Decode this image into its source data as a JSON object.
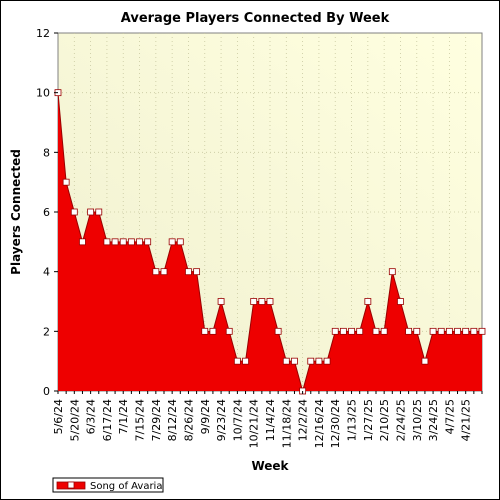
{
  "chart_data": {
    "type": "area",
    "title": "Average Players Connected By Week",
    "xlabel": "Week",
    "ylabel": "Players Connected",
    "ylim": [
      0,
      12
    ],
    "yticks": [
      "0",
      "2",
      "4",
      "6",
      "8",
      "10",
      "12"
    ],
    "grid": true,
    "legend_position": "bottom-left",
    "colors": {
      "fill": "#ee0000",
      "line": "#990000",
      "marker_fill": "#ffffff",
      "bg_top": "#ffffe0",
      "bg_bottom": "#f0f0d0"
    },
    "x_tick_labels": [
      "5/6/24",
      "5/20/24",
      "6/3/24",
      "6/17/24",
      "7/1/24",
      "7/15/24",
      "7/29/24",
      "8/12/24",
      "8/26/24",
      "9/9/24",
      "9/23/24",
      "10/7/24",
      "10/21/24",
      "11/4/24",
      "11/18/24",
      "12/2/24",
      "12/16/24",
      "12/30/24",
      "1/13/25",
      "1/27/25",
      "2/10/25",
      "2/24/25",
      "3/10/25",
      "3/24/25",
      "4/7/25",
      "4/21/25"
    ],
    "series": [
      {
        "name": "Song of Avaria",
        "values": [
          10,
          7,
          6,
          5,
          6,
          6,
          5,
          5,
          5,
          5,
          5,
          5,
          4,
          4,
          5,
          5,
          4,
          4,
          2,
          2,
          3,
          2,
          1,
          1,
          3,
          3,
          3,
          2,
          1,
          1,
          0,
          1,
          1,
          1,
          2,
          2,
          2,
          2,
          3,
          2,
          2,
          4,
          3,
          2,
          2,
          1,
          2,
          2,
          2,
          2,
          2,
          2,
          2
        ]
      }
    ]
  }
}
